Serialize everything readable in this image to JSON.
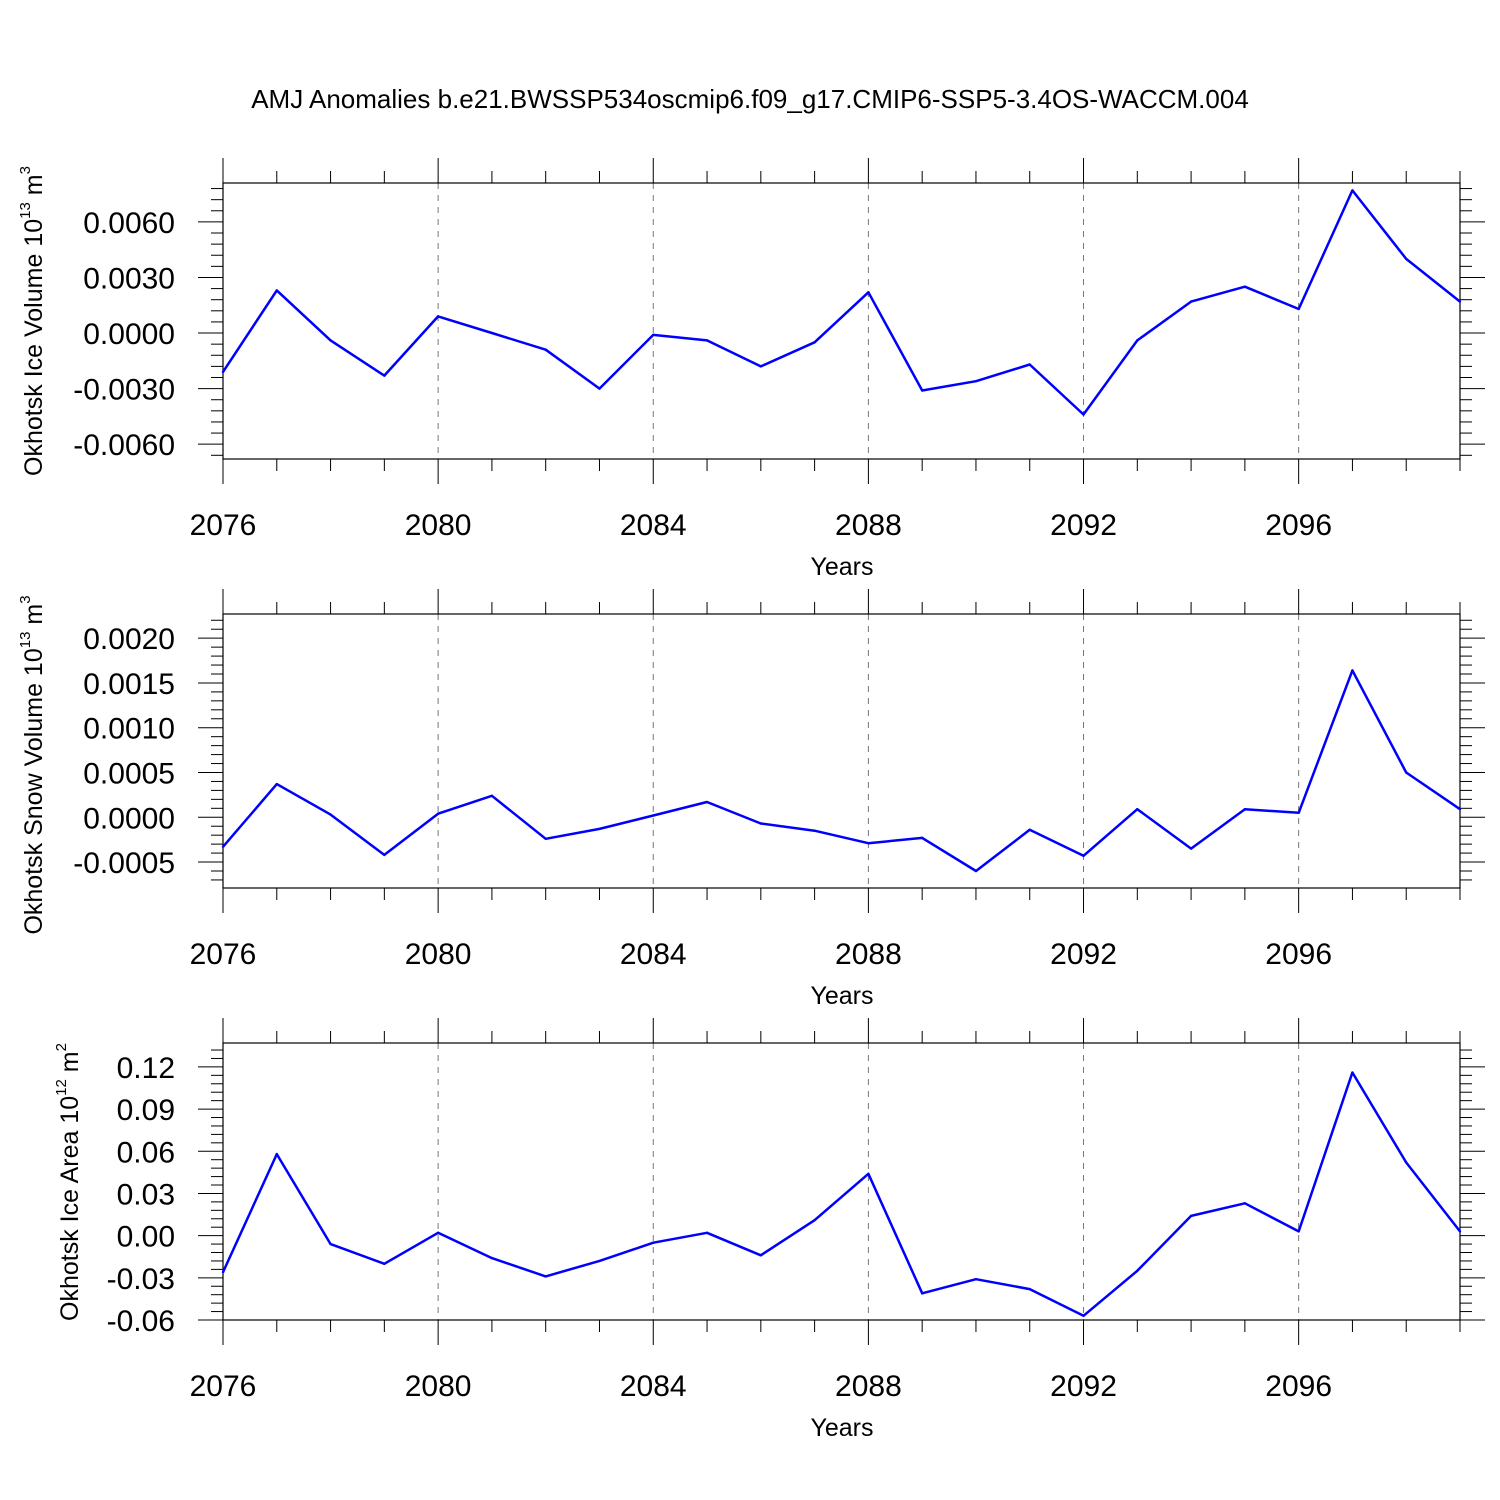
{
  "title": "AMJ Anomalies b.e21.BWSSP534oscmip6.f09_g17.CMIP6-SSP5-3.4OS-WACCM.004",
  "chart_data": [
    {
      "type": "line",
      "ylabel": {
        "prefix": "Okhotsk Ice Volume 10",
        "exponent": "13",
        "mid": " m",
        "unit_exponent": "3"
      },
      "xlabel": "Years",
      "xlim": [
        2076,
        2099
      ],
      "ylim": [
        -0.0068,
        0.0081
      ],
      "xticks": [
        "2076",
        "2080",
        "2084",
        "2088",
        "2092",
        "2096"
      ],
      "yticks": [
        "0.0060",
        "0.0030",
        "0.0000",
        "-0.0030",
        "-0.0060"
      ],
      "ytick_values": [
        0.006,
        0.003,
        0.0,
        -0.003,
        -0.006
      ],
      "grid": "dashed vertical at labeled years",
      "line_color": "#0000ff",
      "x": [
        2076,
        2077,
        2078,
        2079,
        2080,
        2081,
        2082,
        2083,
        2084,
        2085,
        2086,
        2087,
        2088,
        2089,
        2090,
        2091,
        2092,
        2093,
        2094,
        2095,
        2096,
        2097,
        2098,
        2099
      ],
      "values": [
        -0.0021,
        0.0023,
        -0.0004,
        -0.0023,
        0.0009,
        0.0,
        -0.0009,
        -0.003,
        -0.0001,
        -0.0004,
        -0.0018,
        -0.0005,
        0.0022,
        -0.0031,
        -0.0026,
        -0.0017,
        -0.0044,
        -0.0004,
        0.0017,
        0.0025,
        0.0013,
        0.0077,
        0.004,
        0.0017
      ]
    },
    {
      "type": "line",
      "ylabel": {
        "prefix": "Okhotsk Snow Volume 10",
        "exponent": "13",
        "mid": " m",
        "unit_exponent": "3"
      },
      "xlabel": "Years",
      "xlim": [
        2076,
        2099
      ],
      "ylim": [
        -0.00079,
        0.00227
      ],
      "xticks": [
        "2076",
        "2080",
        "2084",
        "2088",
        "2092",
        "2096"
      ],
      "yticks": [
        "0.0020",
        "0.0015",
        "0.0010",
        "0.0005",
        "0.0000",
        "-0.0005"
      ],
      "ytick_values": [
        0.002,
        0.0015,
        0.001,
        0.0005,
        0.0,
        -0.0005
      ],
      "grid": "dashed vertical at labeled years",
      "line_color": "#0000ff",
      "x": [
        2076,
        2077,
        2078,
        2079,
        2080,
        2081,
        2082,
        2083,
        2084,
        2085,
        2086,
        2087,
        2088,
        2089,
        2090,
        2091,
        2092,
        2093,
        2094,
        2095,
        2096,
        2097,
        2098,
        2099
      ],
      "values": [
        -0.00033,
        0.00037,
        3e-05,
        -0.00042,
        4e-05,
        0.00024,
        -0.00024,
        -0.00013,
        2e-05,
        0.00017,
        -7e-05,
        -0.00015,
        -0.00029,
        -0.00023,
        -0.0006,
        -0.00014,
        -0.00043,
        9e-05,
        -0.00035,
        9e-05,
        5e-05,
        0.00164,
        0.0005,
        9e-05
      ]
    },
    {
      "type": "line",
      "ylabel": {
        "prefix": "Okhotsk Ice Area 10",
        "exponent": "12",
        "mid": " m",
        "unit_exponent": "2"
      },
      "xlabel": "Years",
      "xlim": [
        2076,
        2099
      ],
      "ylim": [
        -0.06,
        0.137
      ],
      "xticks": [
        "2076",
        "2080",
        "2084",
        "2088",
        "2092",
        "2096"
      ],
      "yticks": [
        "0.12",
        "0.09",
        "0.06",
        "0.03",
        "0.00",
        "-0.03",
        "-0.06"
      ],
      "ytick_values": [
        0.12,
        0.09,
        0.06,
        0.03,
        0.0,
        -0.03,
        -0.06
      ],
      "grid": "dashed vertical at labeled years",
      "line_color": "#0000ff",
      "x": [
        2076,
        2077,
        2078,
        2079,
        2080,
        2081,
        2082,
        2083,
        2084,
        2085,
        2086,
        2087,
        2088,
        2089,
        2090,
        2091,
        2092,
        2093,
        2094,
        2095,
        2096,
        2097,
        2098,
        2099
      ],
      "values": [
        -0.026,
        0.058,
        -0.006,
        -0.02,
        0.002,
        -0.016,
        -0.029,
        -0.018,
        -0.005,
        0.002,
        -0.014,
        0.011,
        0.044,
        -0.041,
        -0.031,
        -0.038,
        -0.057,
        -0.025,
        0.014,
        0.023,
        0.003,
        0.116,
        0.052,
        0.003
      ]
    }
  ]
}
